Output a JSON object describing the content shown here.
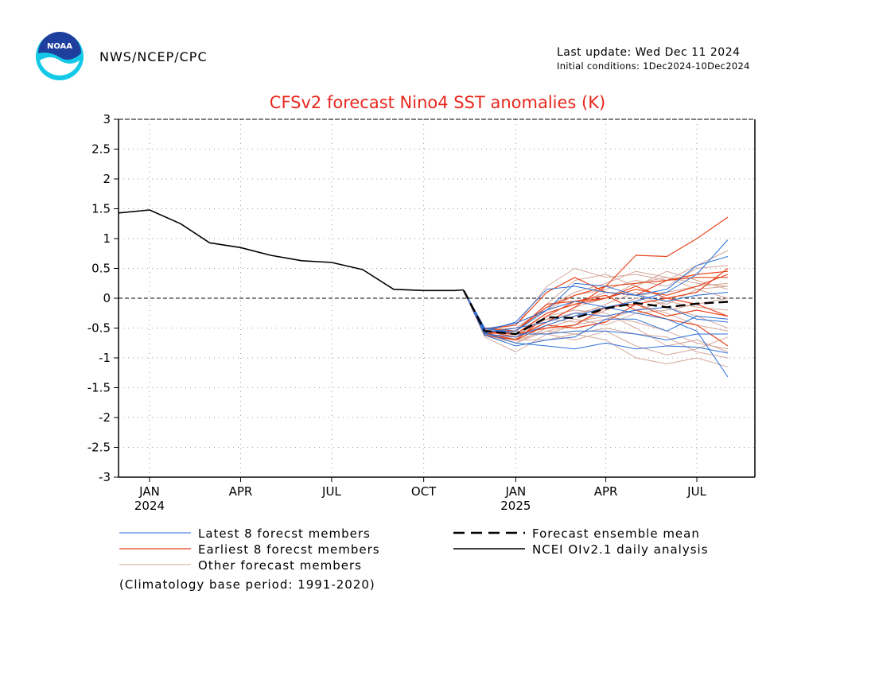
{
  "header": {
    "agency": "NWS/NCEP/CPC",
    "last_update": "Last update: Wed Dec 11 2024",
    "initial_conditions": "Initial conditions: 1Dec2024-10Dec2024",
    "logo_text": "NOAA"
  },
  "footnote": "(Climatology base period: 1991-2020)",
  "colors": {
    "title": "#e8281e",
    "latest": "#2a6fd6",
    "earliest": "#e8461e",
    "other": "#d4a79a",
    "analysis": "#000000",
    "mean": "#000000",
    "logo_blue": "#1f3f9e",
    "logo_cyan": "#14c9e8"
  },
  "chart_data": {
    "type": "line",
    "title": "CFSv2 forecast Nino4 SST anomalies (K)",
    "xlabel": "",
    "ylabel": "",
    "ylim": [
      -3,
      3
    ],
    "xlim": [
      "2023-12-01",
      "2025-08-28"
    ],
    "yticks": [
      -3,
      -2.5,
      -2,
      -1.5,
      -1,
      -0.5,
      0,
      0.5,
      1,
      1.5,
      2,
      2.5,
      3
    ],
    "ytick_labels": [
      "-3",
      "-2.5",
      "-2",
      "-1.5",
      "-1",
      "-0.5",
      "0",
      "0.5",
      "1",
      "1.5",
      "2",
      "2.5",
      "3"
    ],
    "xticks": [
      {
        "date": "2024-01-01",
        "label": "JAN",
        "year": "2024"
      },
      {
        "date": "2024-04-01",
        "label": "APR",
        "year": ""
      },
      {
        "date": "2024-07-01",
        "label": "JUL",
        "year": ""
      },
      {
        "date": "2024-10-01",
        "label": "OCT",
        "year": ""
      },
      {
        "date": "2025-01-01",
        "label": "JAN",
        "year": "2025"
      },
      {
        "date": "2025-04-01",
        "label": "APR",
        "year": ""
      },
      {
        "date": "2025-07-01",
        "label": "JUL",
        "year": ""
      }
    ],
    "grid": true,
    "legend": {
      "placement": "bottom",
      "entries": [
        {
          "key": "latest",
          "label": "Latest 8 forecst members"
        },
        {
          "key": "earliest",
          "label": "Earliest 8 forecst members"
        },
        {
          "key": "other",
          "label": "Other forecast members"
        },
        {
          "key": "mean",
          "label": "Forecast ensemble mean"
        },
        {
          "key": "analysis",
          "label": "NCEI OIv2.1 daily analysis"
        }
      ]
    },
    "analysis": {
      "name": "NCEI OIv2.1 daily analysis",
      "x": [
        "2023-12-01",
        "2024-01-01",
        "2024-02-01",
        "2024-03-01",
        "2024-04-01",
        "2024-05-01",
        "2024-06-01",
        "2024-07-01",
        "2024-08-01",
        "2024-09-01",
        "2024-10-01",
        "2024-11-01",
        "2024-11-10"
      ],
      "y": [
        1.43,
        1.48,
        1.25,
        0.93,
        0.85,
        0.72,
        0.63,
        0.6,
        0.48,
        0.15,
        0.13,
        0.13,
        0.14
      ]
    },
    "ensemble_mean": {
      "name": "Forecast ensemble mean",
      "x": [
        "2024-12-01",
        "2025-01-01",
        "2025-02-01",
        "2025-03-01",
        "2025-04-01",
        "2025-05-01",
        "2025-06-01",
        "2025-07-01",
        "2025-08-01"
      ],
      "y": [
        -0.55,
        -0.6,
        -0.32,
        -0.33,
        -0.17,
        -0.08,
        -0.15,
        -0.09,
        -0.06
      ]
    },
    "members_x": [
      "2024-12-01",
      "2025-01-01",
      "2025-02-01",
      "2025-03-01",
      "2025-04-01",
      "2025-05-01",
      "2025-06-01",
      "2025-07-01",
      "2025-08-01"
    ],
    "members_x0": "2024-11-10",
    "members_y0": 0.13,
    "latest_members": [
      [
        -0.52,
        -0.42,
        -0.2,
        -0.05,
        -0.15,
        -0.25,
        -0.35,
        -0.55,
        -1.32
      ],
      [
        -0.58,
        -0.75,
        -0.8,
        -0.85,
        -0.75,
        -0.85,
        -0.8,
        -0.82,
        -0.92
      ],
      [
        -0.6,
        -0.65,
        -0.45,
        -0.3,
        -0.15,
        -0.05,
        0.1,
        0.4,
        0.98
      ],
      [
        -0.55,
        -0.55,
        -0.2,
        0.25,
        0.2,
        0.05,
        0.15,
        0.55,
        0.7
      ],
      [
        -0.5,
        -0.6,
        -0.6,
        -0.55,
        -0.55,
        -0.6,
        -0.7,
        -0.6,
        -0.6
      ],
      [
        -0.62,
        -0.8,
        -0.7,
        -0.65,
        -0.35,
        -0.35,
        -0.55,
        -0.3,
        -0.35
      ],
      [
        -0.55,
        -0.4,
        0.15,
        0.2,
        0.1,
        0.05,
        -0.05,
        0.05,
        0.1
      ],
      [
        -0.58,
        -0.5,
        -0.4,
        -0.25,
        -0.3,
        -0.2,
        -0.15,
        -0.35,
        -0.4
      ]
    ],
    "earliest_members": [
      [
        -0.55,
        -0.65,
        -0.4,
        -0.15,
        0.2,
        0.72,
        0.7,
        1.0,
        1.36
      ],
      [
        -0.58,
        -0.7,
        -0.3,
        -0.05,
        0.05,
        -0.2,
        -0.35,
        -0.45,
        -0.8
      ],
      [
        -0.5,
        -0.55,
        -0.15,
        0.05,
        0.2,
        0.25,
        0.3,
        0.4,
        0.45
      ],
      [
        -0.6,
        -0.55,
        -0.1,
        -0.05,
        0.0,
        0.15,
        0.05,
        0.2,
        0.4
      ],
      [
        -0.55,
        -0.6,
        -0.5,
        -0.45,
        -0.15,
        -0.1,
        -0.3,
        -0.2,
        -0.3
      ],
      [
        -0.52,
        -0.45,
        0.1,
        0.35,
        0.1,
        0.05,
        0.3,
        0.35,
        0.35
      ],
      [
        -0.62,
        -0.7,
        -0.45,
        -0.5,
        -0.4,
        -0.1,
        0.0,
        -0.1,
        -0.3
      ],
      [
        -0.57,
        -0.6,
        -0.25,
        -0.1,
        0.0,
        0.2,
        0.0,
        0.1,
        0.5
      ]
    ],
    "other_members": [
      [
        -0.5,
        -0.45,
        0.2,
        0.5,
        0.35,
        0.4,
        0.3,
        0.55,
        0.8
      ],
      [
        -0.6,
        -0.75,
        -0.55,
        -0.6,
        -0.7,
        -1.0,
        -1.1,
        -1.0,
        -1.15
      ],
      [
        -0.55,
        -0.6,
        -0.3,
        -0.2,
        -0.25,
        -0.5,
        -0.8,
        -0.7,
        -0.9
      ],
      [
        -0.65,
        -0.9,
        -0.6,
        -0.45,
        -0.2,
        0.0,
        -0.1,
        0.15,
        0.2
      ],
      [
        -0.52,
        -0.55,
        -0.1,
        0.3,
        0.4,
        0.2,
        0.45,
        0.3,
        0.15
      ],
      [
        -0.58,
        -0.7,
        -0.7,
        -0.6,
        -0.5,
        -0.6,
        -0.65,
        -0.9,
        -1.0
      ],
      [
        -0.6,
        -0.65,
        -0.45,
        -0.3,
        -0.1,
        0.1,
        -0.15,
        -0.3,
        -0.5
      ],
      [
        -0.55,
        -0.5,
        -0.2,
        0.05,
        0.15,
        0.3,
        0.2,
        0.5,
        0.55
      ],
      [
        -0.5,
        -0.6,
        -0.35,
        -0.4,
        -0.3,
        -0.4,
        -0.55,
        -0.75,
        -0.85
      ],
      [
        -0.62,
        -0.75,
        -0.5,
        -0.35,
        -0.45,
        -0.25,
        -0.2,
        -0.1,
        0.0
      ],
      [
        -0.57,
        -0.6,
        -0.25,
        -0.1,
        0.1,
        0.05,
        0.1,
        0.2,
        0.25
      ],
      [
        -0.53,
        -0.55,
        -0.6,
        -0.7,
        -0.55,
        -0.8,
        -0.95,
        -0.85,
        -0.65
      ],
      [
        -0.6,
        -0.68,
        -0.4,
        -0.15,
        0.0,
        0.25,
        0.35,
        0.25,
        0.2
      ],
      [
        -0.55,
        -0.62,
        -0.35,
        -0.25,
        -0.15,
        -0.1,
        -0.25,
        -0.45,
        -0.55
      ],
      [
        -0.58,
        -0.7,
        -0.55,
        -0.45,
        -0.35,
        -0.2,
        -0.05,
        -0.15,
        -0.2
      ],
      [
        -0.52,
        -0.5,
        -0.15,
        0.1,
        0.25,
        0.45,
        0.35,
        0.15,
        0.0
      ]
    ]
  }
}
